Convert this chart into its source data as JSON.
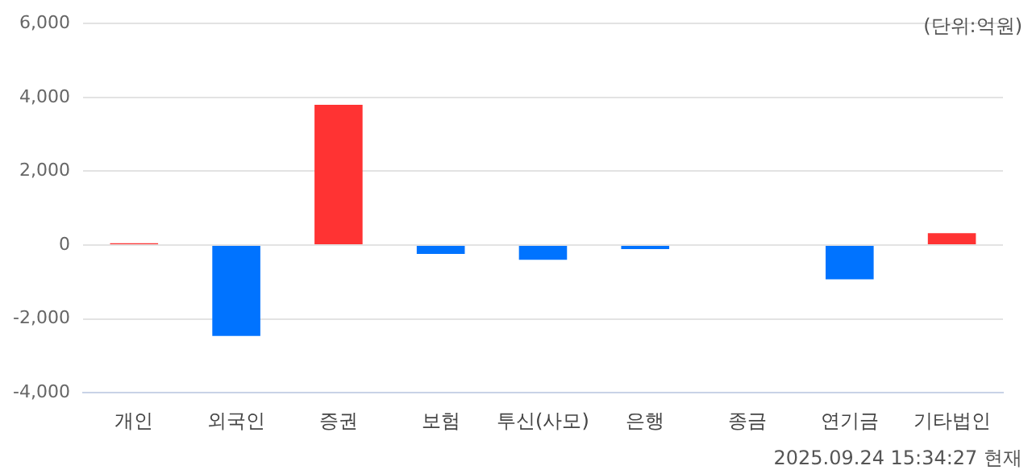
{
  "chart_data": {
    "type": "bar",
    "categories": [
      "개인",
      "외국인",
      "증권",
      "보험",
      "투신(사모)",
      "은행",
      "종금",
      "연기금",
      "기타법인"
    ],
    "values": [
      50,
      -2460,
      3800,
      -240,
      -400,
      -110,
      0,
      -930,
      320
    ],
    "colors": [
      "#ff3333",
      "#0073ff",
      "#ff3333",
      "#0073ff",
      "#0073ff",
      "#0073ff",
      "#0073ff",
      "#0073ff",
      "#ff3333"
    ],
    "ylim": [
      -4000,
      6000
    ],
    "yticks": [
      {
        "value": -4000,
        "label": "-4,000"
      },
      {
        "value": -2000,
        "label": "-2,000"
      },
      0,
      {
        "value": 2000,
        "label": "2,000"
      },
      {
        "value": 4000,
        "label": "4,000"
      },
      {
        "value": 6000,
        "label": "6,000"
      }
    ],
    "grid": "y",
    "legend": false,
    "annotations": [
      "(단위:억원)",
      "2025.09.24 15:34:27 현재"
    ]
  }
}
